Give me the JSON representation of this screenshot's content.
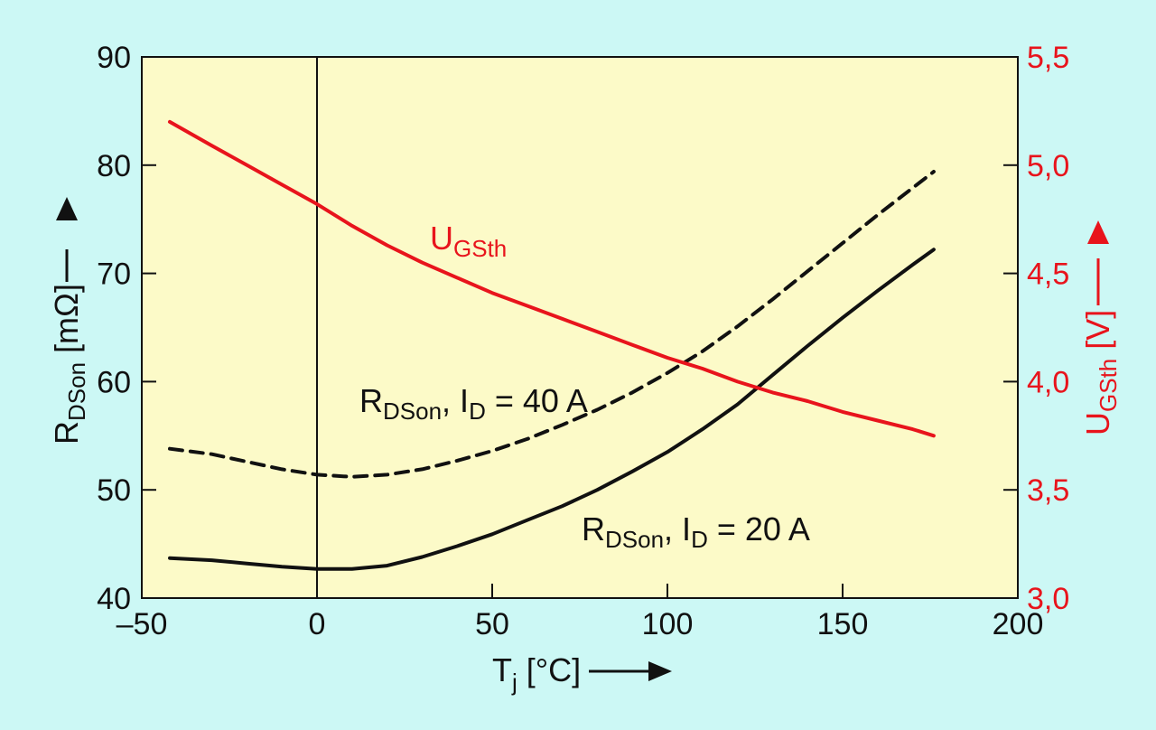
{
  "chart_data": {
    "type": "line",
    "title": "",
    "x_axis": {
      "label_main": "T",
      "label_sub": "j",
      "label_rest": " [°C]",
      "range": [
        -50,
        200
      ],
      "ticks": [
        -50,
        0,
        50,
        100,
        150,
        200
      ],
      "tick_labels": [
        "–50",
        "0",
        "50",
        "100",
        "150",
        "200"
      ]
    },
    "y_left": {
      "label_main": "R",
      "label_sub": "DSon",
      "label_rest": " [mΩ]",
      "range": [
        40,
        90
      ],
      "ticks": [
        40,
        50,
        60,
        70,
        80,
        90
      ],
      "tick_labels": [
        "40",
        "50",
        "60",
        "70",
        "80",
        "90"
      ]
    },
    "y_right": {
      "label_main": "U",
      "label_sub": "GSth",
      "label_rest": " [V]",
      "range": [
        3.0,
        5.5
      ],
      "ticks": [
        3.0,
        3.5,
        4.0,
        4.5,
        5.0,
        5.5
      ],
      "tick_labels": [
        "3,0",
        "3,5",
        "4,0",
        "4,5",
        "5,0",
        "5,5"
      ],
      "color": "#e8141c"
    },
    "grid": false,
    "reference_line_x": 0,
    "series": [
      {
        "name_main": "R",
        "name_sub": "DSon",
        "name_rest": ", I",
        "name_sub2": "D",
        "name_tail": " = 40 A",
        "axis": "left",
        "style": "dashed",
        "color": "#111111",
        "x": [
          -42,
          -30,
          -20,
          -10,
          0,
          10,
          20,
          30,
          40,
          50,
          60,
          70,
          80,
          90,
          100,
          110,
          120,
          130,
          140,
          150,
          160,
          170,
          176
        ],
        "y": [
          53.8,
          53.3,
          52.6,
          51.9,
          51.4,
          51.2,
          51.4,
          51.9,
          52.7,
          53.6,
          54.7,
          56.0,
          57.4,
          59.0,
          60.8,
          62.8,
          65.1,
          67.6,
          70.2,
          72.8,
          75.4,
          77.9,
          79.4
        ]
      },
      {
        "name_main": "R",
        "name_sub": "DSon",
        "name_rest": ", I",
        "name_sub2": "D",
        "name_tail": " = 20 A",
        "axis": "left",
        "style": "solid",
        "color": "#111111",
        "x": [
          -42,
          -30,
          -20,
          -10,
          0,
          10,
          20,
          30,
          40,
          50,
          60,
          70,
          80,
          90,
          100,
          110,
          120,
          130,
          140,
          150,
          160,
          170,
          176
        ],
        "y": [
          43.7,
          43.5,
          43.2,
          42.9,
          42.7,
          42.7,
          43.0,
          43.8,
          44.8,
          45.9,
          47.2,
          48.5,
          50.0,
          51.7,
          53.5,
          55.6,
          57.9,
          60.6,
          63.3,
          65.9,
          68.4,
          70.8,
          72.2
        ]
      },
      {
        "name_main": "U",
        "name_sub": "GSth",
        "axis": "right",
        "style": "solid",
        "color": "#e8141c",
        "x": [
          -42,
          -30,
          -20,
          -10,
          0,
          10,
          20,
          30,
          40,
          50,
          60,
          70,
          80,
          90,
          100,
          110,
          120,
          130,
          140,
          150,
          160,
          170,
          176
        ],
        "y": [
          5.2,
          5.09,
          5.0,
          4.91,
          4.82,
          4.72,
          4.63,
          4.55,
          4.48,
          4.41,
          4.35,
          4.29,
          4.23,
          4.17,
          4.11,
          4.06,
          4.0,
          3.95,
          3.91,
          3.86,
          3.82,
          3.78,
          3.75
        ]
      }
    ]
  }
}
